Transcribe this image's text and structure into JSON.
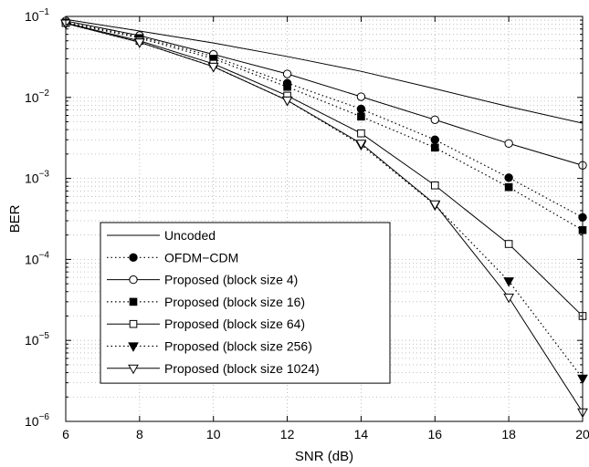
{
  "chart_data": {
    "type": "line",
    "title": "",
    "xlabel": "SNR (dB)",
    "ylabel": "BER",
    "xlim": [
      6,
      20
    ],
    "ylim": [
      1e-06,
      0.1
    ],
    "yscale": "log",
    "grid": true,
    "legend_position": "bottom-left",
    "x": [
      6,
      8,
      10,
      12,
      14,
      16,
      18,
      20
    ],
    "xticks": [
      "6",
      "8",
      "10",
      "12",
      "14",
      "16",
      "18",
      "20"
    ],
    "yticks": [
      {
        "value": 0.1,
        "base": "10",
        "exp": "−1"
      },
      {
        "value": 0.01,
        "base": "10",
        "exp": "−2"
      },
      {
        "value": 0.001,
        "base": "10",
        "exp": "−3"
      },
      {
        "value": 0.0001,
        "base": "10",
        "exp": "−4"
      },
      {
        "value": 1e-05,
        "base": "10",
        "exp": "−5"
      },
      {
        "value": 1e-06,
        "base": "10",
        "exp": "−6"
      }
    ],
    "series": [
      {
        "name": "Uncoded",
        "line": "solid",
        "marker": "none",
        "values": [
          0.092,
          0.066,
          0.047,
          0.032,
          0.021,
          0.0128,
          0.0077,
          0.0048
        ]
      },
      {
        "name": "OFDM−CDM",
        "line": "dotted",
        "marker": "filled-circle",
        "values": [
          0.085,
          0.056,
          0.032,
          0.015,
          0.0072,
          0.003,
          0.00102,
          0.00033
        ]
      },
      {
        "name": "Proposed (block size 4)",
        "line": "solid",
        "marker": "open-circle",
        "values": [
          0.088,
          0.058,
          0.034,
          0.0195,
          0.0102,
          0.0053,
          0.0027,
          0.00145
        ]
      },
      {
        "name": "Proposed (block size 16)",
        "line": "dotted",
        "marker": "filled-square",
        "values": [
          0.084,
          0.054,
          0.03,
          0.0135,
          0.0058,
          0.0024,
          0.00078,
          0.00023
        ]
      },
      {
        "name": "Proposed (block size 64)",
        "line": "solid",
        "marker": "open-square",
        "values": [
          0.083,
          0.05,
          0.026,
          0.0105,
          0.0036,
          0.00082,
          0.000155,
          2e-05
        ]
      },
      {
        "name": "Proposed (block size 256)",
        "line": "dotted",
        "marker": "filled-triangle-down",
        "values": [
          0.082,
          0.048,
          0.024,
          0.0092,
          0.0026,
          0.00047,
          5.4e-05,
          3.4e-06
        ]
      },
      {
        "name": "Proposed (block size 1024)",
        "line": "solid",
        "marker": "open-triangle-down",
        "values": [
          0.082,
          0.048,
          0.024,
          0.0092,
          0.0027,
          0.00048,
          3.4e-05,
          1.3e-06
        ]
      }
    ]
  },
  "colors": {
    "ink": "#000000",
    "grid": "#b0b0b0",
    "background": "#ffffff"
  }
}
